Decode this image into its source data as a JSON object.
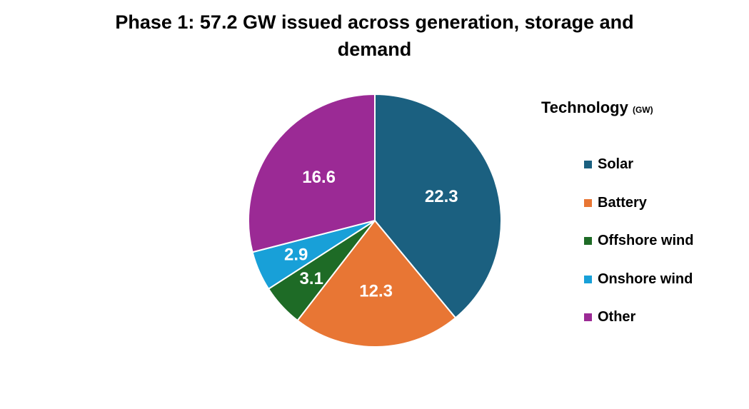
{
  "chart_data": {
    "type": "pie",
    "title": [
      "Phase 1:  57.2 GW issued across generation, storage and",
      "demand"
    ],
    "legend_title": "Technology",
    "legend_unit": "(GW)",
    "legend_position": "right",
    "categories": [
      "Solar",
      "Battery",
      "Offshore wind",
      "Onshore wind",
      "Other"
    ],
    "values": [
      22.3,
      12.3,
      3.1,
      2.9,
      16.6
    ],
    "labels": [
      "22.3",
      "12.3",
      "3.1",
      "2.9",
      "16.6"
    ],
    "colors": [
      "#1b6080",
      "#e87634",
      "#1e6b26",
      "#18a0d8",
      "#9b2a95"
    ]
  }
}
